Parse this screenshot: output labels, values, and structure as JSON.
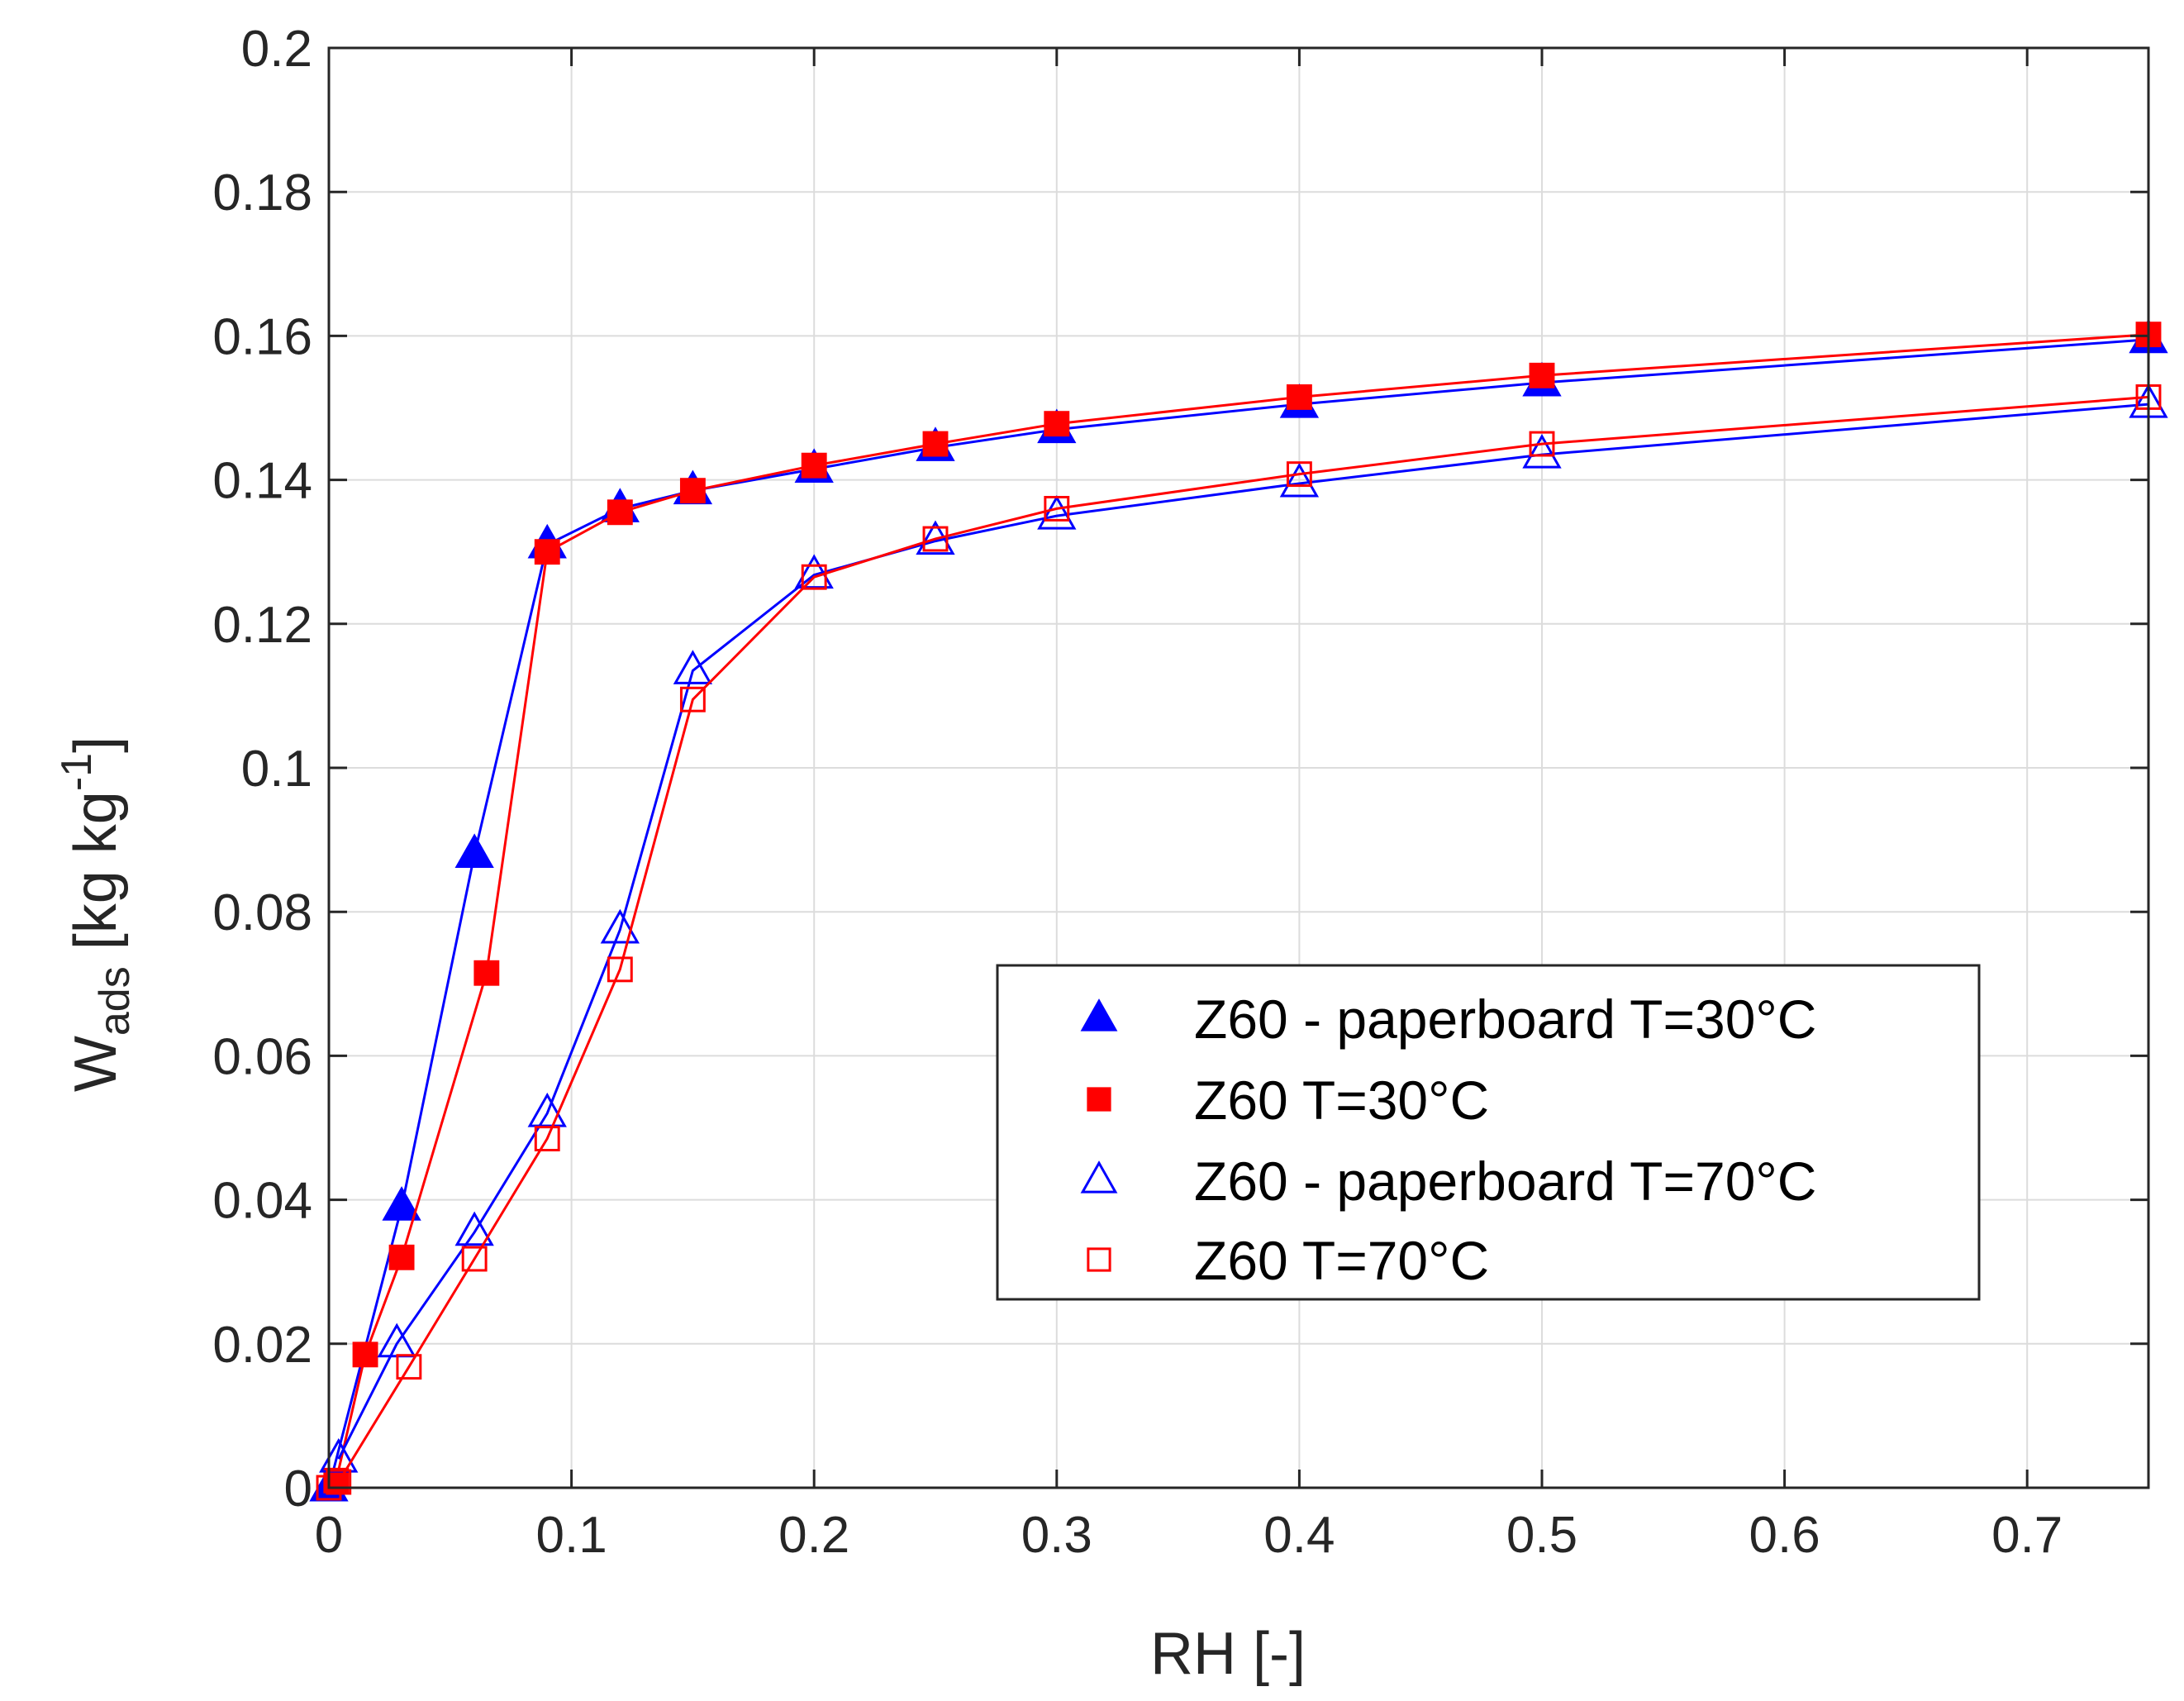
{
  "chart_data": {
    "type": "line",
    "title": "",
    "xlabel": "RH [-]",
    "ylabel": {
      "main": "W",
      "subscript": "ads",
      "unit_open": " [kg kg",
      "superscript": "-1",
      "unit_close": "]"
    },
    "xlim": [
      0,
      0.75
    ],
    "ylim": [
      0,
      0.2
    ],
    "xticks": [
      0,
      0.1,
      0.2,
      0.3,
      0.4,
      0.5,
      0.6,
      0.7
    ],
    "xtick_labels": [
      "0",
      "0.1",
      "0.2",
      "0.3",
      "0.4",
      "0.5",
      "0.6",
      "0.7"
    ],
    "yticks": [
      0,
      0.02,
      0.04,
      0.06,
      0.08,
      0.1,
      0.12,
      0.14,
      0.16,
      0.18,
      0.2
    ],
    "ytick_labels": [
      "0",
      "0.02",
      "0.04",
      "0.06",
      "0.08",
      "0.1",
      "0.12",
      "0.14",
      "0.16",
      "0.18",
      "0.2"
    ],
    "grid": true,
    "legend_position": "lower-right",
    "series": [
      {
        "name": "Z60 - paperboard T=30°C",
        "color": "#0000ff",
        "marker": "triangle-filled",
        "x": [
          0,
          0.03,
          0.06,
          0.09,
          0.12,
          0.15,
          0.2,
          0.25,
          0.3,
          0.4,
          0.5,
          0.75
        ],
        "y": [
          0,
          0.039,
          0.088,
          0.131,
          0.136,
          0.1385,
          0.1415,
          0.1445,
          0.147,
          0.1505,
          0.1535,
          0.1595
        ]
      },
      {
        "name": "Z60 T=30°C",
        "color": "#ff0000",
        "marker": "square-filled",
        "x": [
          0.003,
          0.015,
          0.03,
          0.065,
          0.09,
          0.12,
          0.15,
          0.2,
          0.25,
          0.3,
          0.4,
          0.5,
          0.75
        ],
        "y": [
          0.001,
          0.0185,
          0.032,
          0.0715,
          0.13,
          0.1355,
          0.1385,
          0.142,
          0.145,
          0.1478,
          0.1515,
          0.1545,
          0.1602
        ]
      },
      {
        "name": "Z60 - paperboard T=70°C",
        "color": "#0000ff",
        "marker": "triangle-open",
        "x": [
          0.004,
          0.028,
          0.06,
          0.09,
          0.12,
          0.15,
          0.2,
          0.25,
          0.3,
          0.4,
          0.5,
          0.75
        ],
        "y": [
          0.004,
          0.02,
          0.0355,
          0.052,
          0.0775,
          0.1135,
          0.1268,
          0.1315,
          0.135,
          0.1395,
          0.1435,
          0.1505
        ]
      },
      {
        "name": "Z60 T=70°C",
        "color": "#ff0000",
        "marker": "square-open",
        "x": [
          0,
          0.004,
          0.033,
          0.06,
          0.09,
          0.12,
          0.15,
          0.2,
          0.25,
          0.3,
          0.4,
          0.5,
          0.75
        ],
        "y": [
          0,
          0.0008,
          0.0168,
          0.0318,
          0.0485,
          0.072,
          0.1095,
          0.1265,
          0.1318,
          0.136,
          0.1408,
          0.145,
          0.1515
        ]
      }
    ]
  }
}
